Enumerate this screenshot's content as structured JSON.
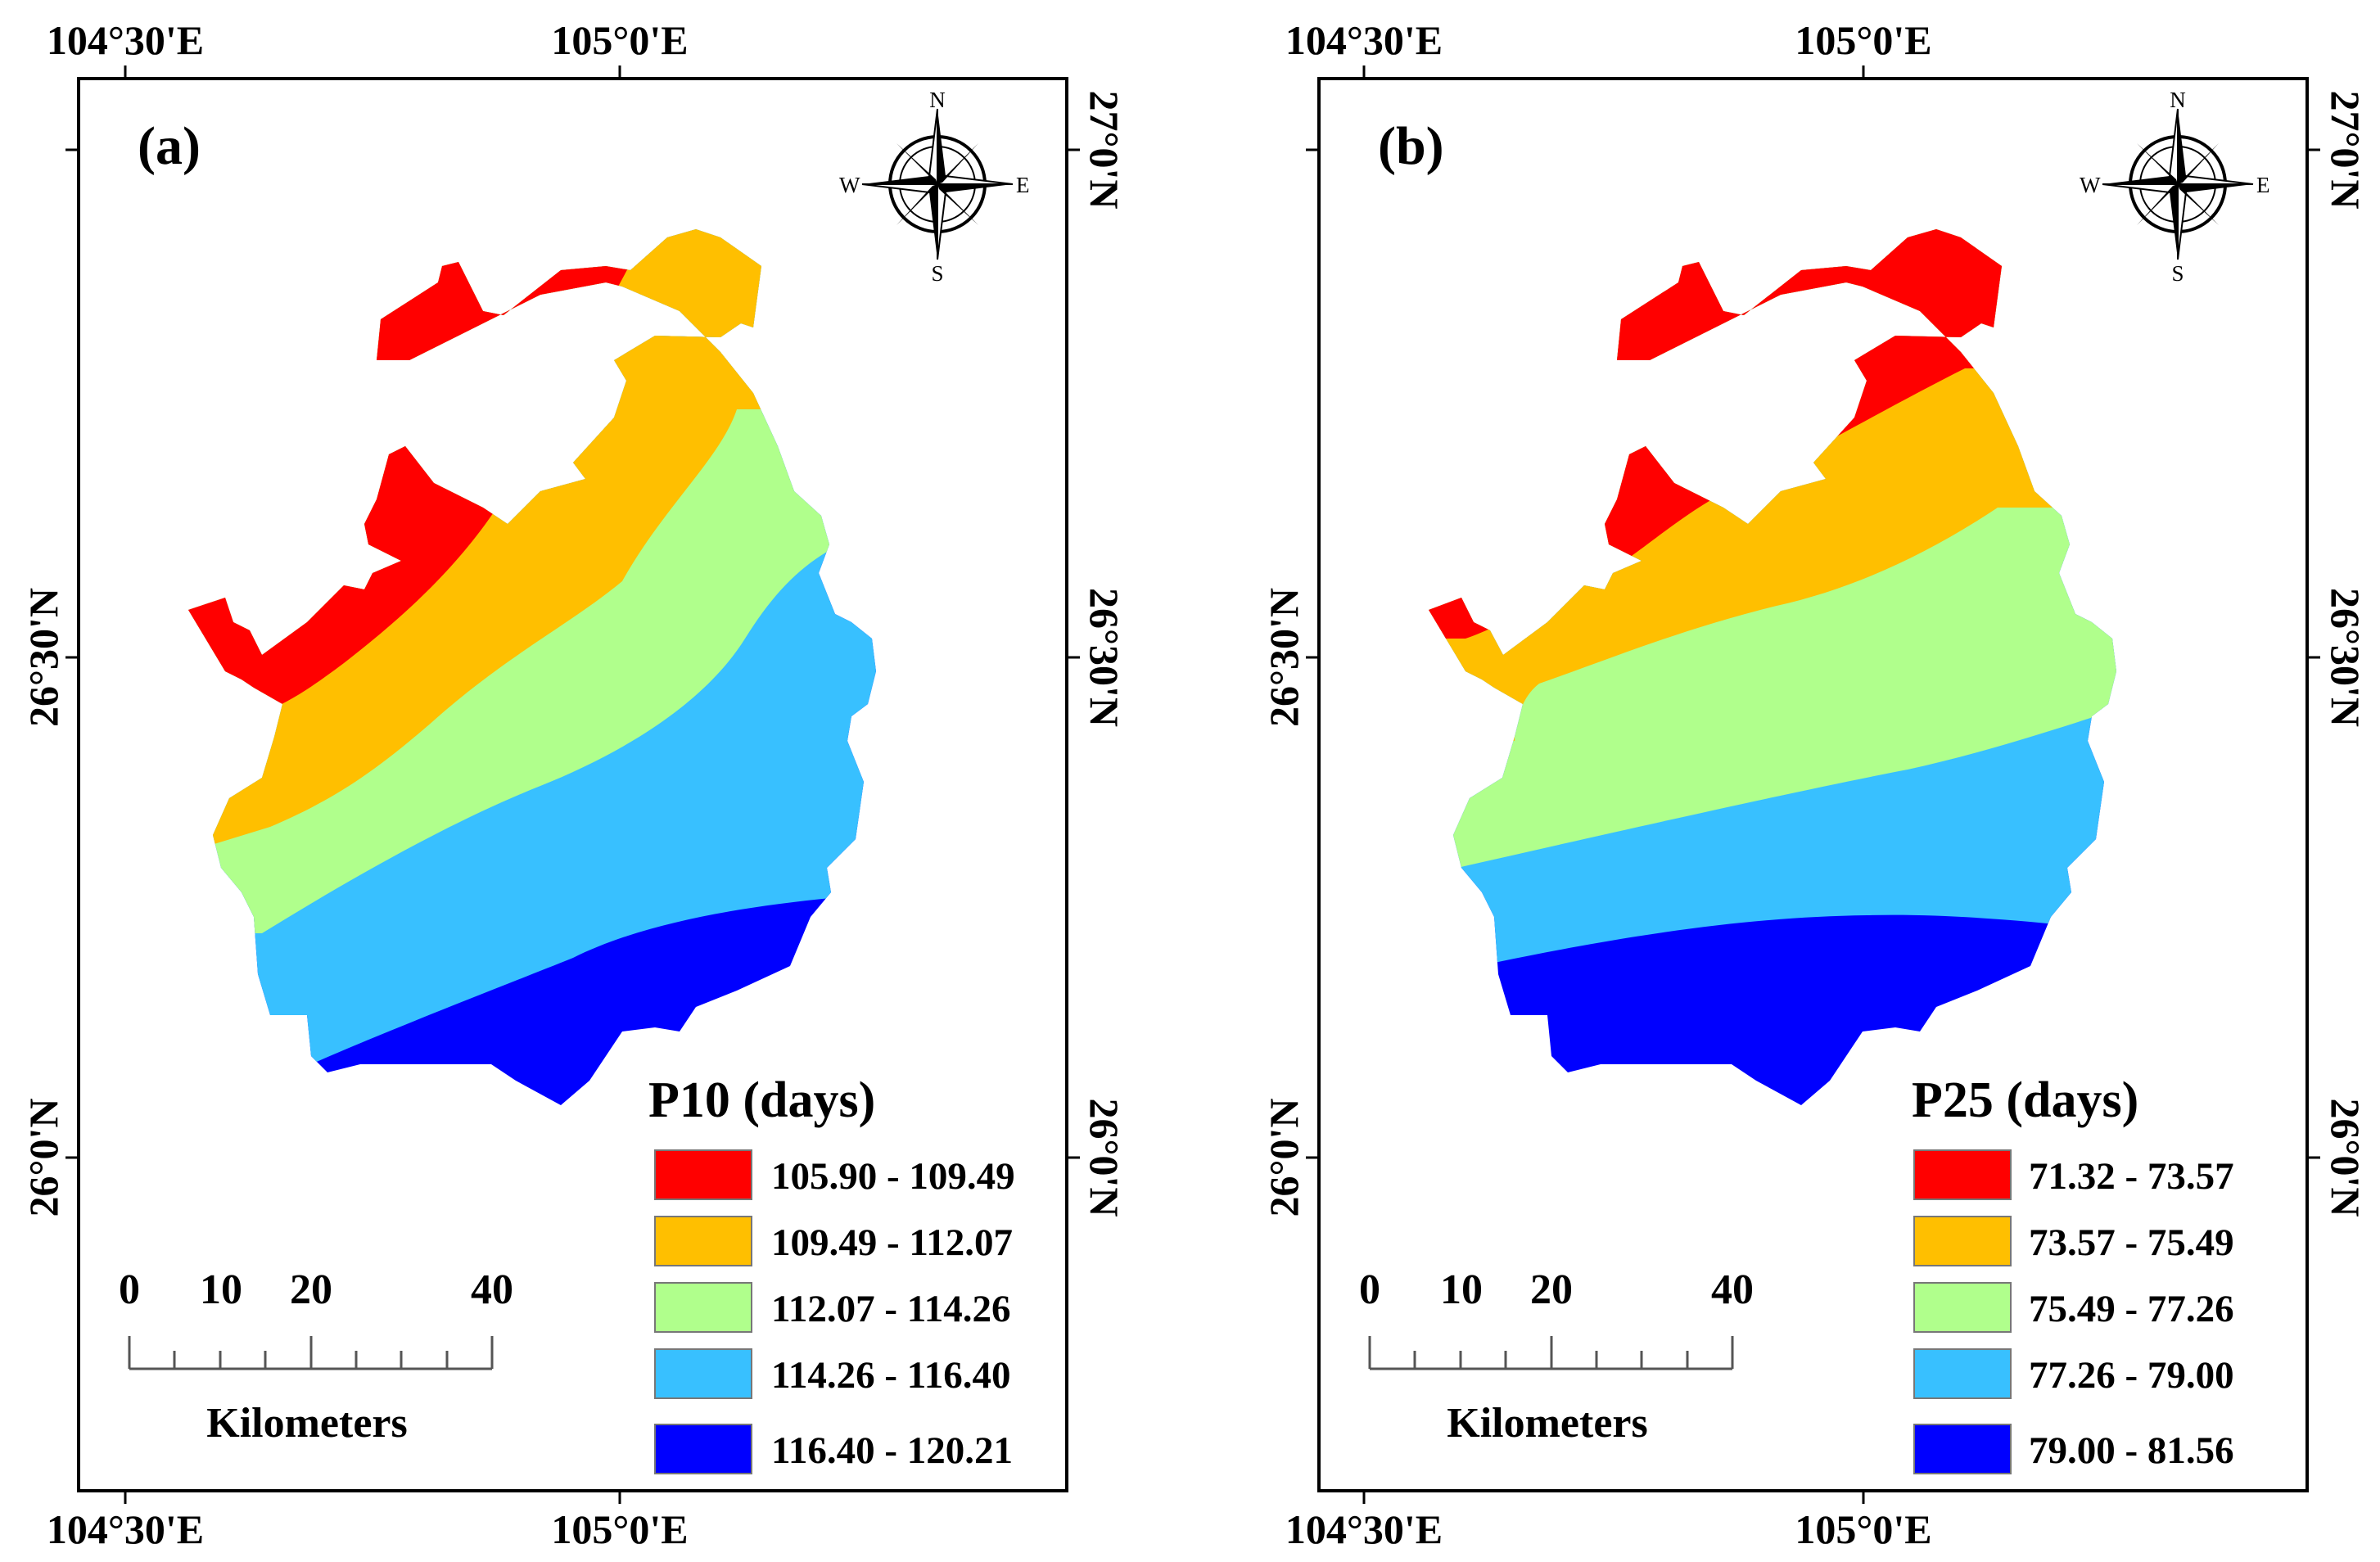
{
  "colors": {
    "class1": "#ff0000",
    "class2": "#ffbf00",
    "class3": "#b0ff8c",
    "class4": "#38c0ff",
    "class5": "#0000ff"
  },
  "coordinates": {
    "top_labels": [
      "104°30'E",
      "105°0'E"
    ],
    "bottom_labels": [
      "104°30'E",
      "105°0'E"
    ],
    "left_labels": [
      "26°30'N",
      "26°0'N"
    ],
    "right_labels": [
      "27°0'N",
      "26°30'N",
      "26°0'N"
    ]
  },
  "compass": {
    "n": "N",
    "s": "S",
    "e": "E",
    "w": "W",
    "icon": "compass-rose-icon"
  },
  "scalebar": {
    "ticks": [
      "0",
      "10",
      "20",
      "40"
    ],
    "unit": "Kilometers"
  },
  "panels": [
    {
      "tag": "(a)",
      "legend_title": "P10 (days)",
      "classes": [
        "105.90 - 109.49",
        "109.49 - 112.07",
        "112.07 - 114.26",
        "114.26 - 116.40",
        "116.40 - 120.21"
      ]
    },
    {
      "tag": "(b)",
      "legend_title": "P25 (days)",
      "classes": [
        "71.32 - 73.57",
        "73.57 - 75.49",
        "75.49 - 77.26",
        "77.26 - 79.00",
        "79.00 - 81.56"
      ]
    }
  ]
}
